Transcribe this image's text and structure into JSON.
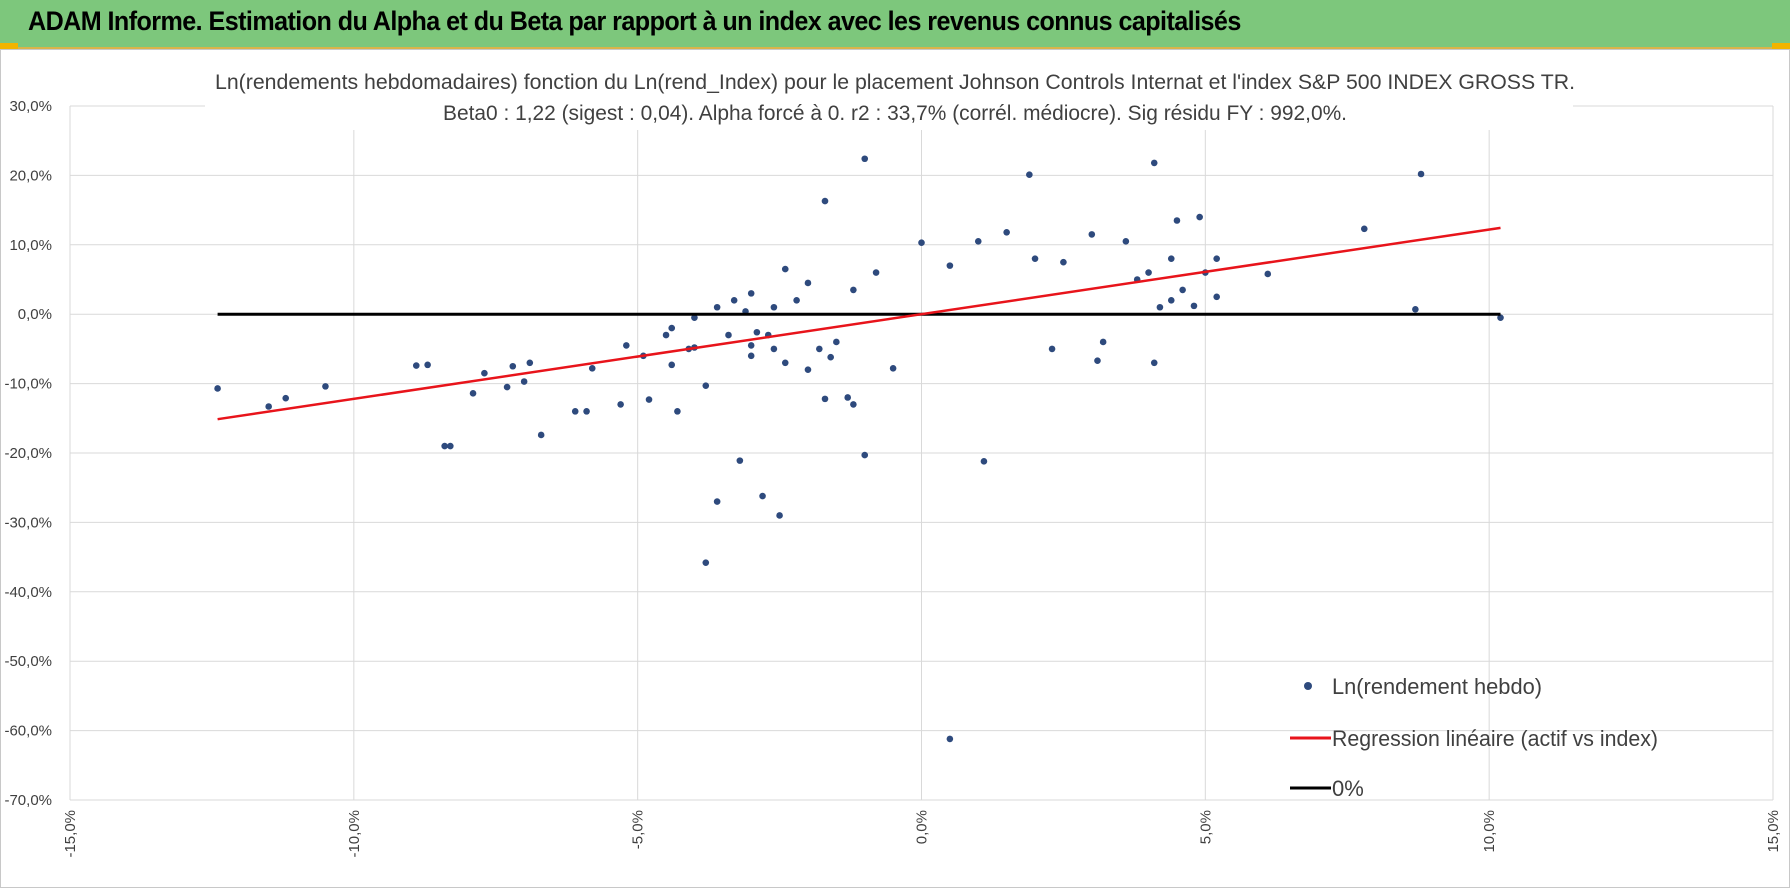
{
  "header": {
    "title": "ADAM Informe. Estimation du Alpha et du Beta par rapport à un index avec les revenus connus capitalisés"
  },
  "colors": {
    "header_bg": "#7dc77c",
    "points": "#2e4a7d",
    "regression": "#e8141b",
    "zero_line": "#000000",
    "accent": "#f2b400"
  },
  "chart_data": {
    "type": "scatter",
    "title": "Ln(rendements hebdomadaires) fonction du Ln(rend_Index) pour le placement Johnson Controls Internat et l'index S&P 500 INDEX GROSS TR.",
    "subtitle": "Beta0 : 1,22 (sigest : 0,04). Alpha forcé à 0. r2 : 33,7% (corrél. médiocre). Sig résidu FY : 992,0%.",
    "xlabel": "",
    "ylabel": "",
    "xlim": [
      -0.15,
      0.15
    ],
    "ylim": [
      -0.7,
      0.3
    ],
    "x_ticks": [
      "-15,0%",
      "-10,0%",
      "-5,0%",
      "0,0%",
      "5,0%",
      "10,0%",
      "15,0%"
    ],
    "y_ticks": [
      "30,0%",
      "20,0%",
      "10,0%",
      "0,0%",
      "-10,0%",
      "-20,0%",
      "-30,0%",
      "-40,0%",
      "-50,0%",
      "-60,0%",
      "-70,0%"
    ],
    "grid": true,
    "legend_position": "bottom-right",
    "series": [
      {
        "name": "Ln(rendement hebdo)",
        "kind": "scatter",
        "points": [
          [
            -0.124,
            -0.107
          ],
          [
            -0.115,
            -0.133
          ],
          [
            -0.112,
            -0.121
          ],
          [
            -0.105,
            -0.104
          ],
          [
            -0.089,
            -0.074
          ],
          [
            -0.087,
            -0.073
          ],
          [
            -0.084,
            -0.19
          ],
          [
            -0.083,
            -0.19
          ],
          [
            -0.079,
            -0.114
          ],
          [
            -0.077,
            -0.085
          ],
          [
            -0.073,
            -0.105
          ],
          [
            -0.072,
            -0.075
          ],
          [
            -0.07,
            -0.097
          ],
          [
            -0.069,
            -0.07
          ],
          [
            -0.067,
            -0.174
          ],
          [
            -0.061,
            -0.14
          ],
          [
            -0.059,
            -0.14
          ],
          [
            -0.058,
            -0.078
          ],
          [
            -0.053,
            -0.13
          ],
          [
            -0.052,
            -0.045
          ],
          [
            -0.049,
            -0.06
          ],
          [
            -0.048,
            -0.123
          ],
          [
            -0.045,
            -0.03
          ],
          [
            -0.044,
            -0.073
          ],
          [
            -0.043,
            -0.14
          ],
          [
            -0.04,
            -0.048
          ],
          [
            -0.038,
            -0.103
          ],
          [
            -0.036,
            -0.27
          ],
          [
            -0.038,
            -0.358
          ],
          [
            -0.032,
            -0.211
          ],
          [
            -0.03,
            -0.045
          ],
          [
            -0.029,
            -0.026
          ],
          [
            -0.028,
            -0.262
          ],
          [
            -0.025,
            -0.29
          ],
          [
            -0.024,
            -0.07
          ],
          [
            -0.024,
            0.065
          ],
          [
            -0.02,
            -0.08
          ],
          [
            -0.017,
            0.163
          ],
          [
            -0.017,
            -0.122
          ],
          [
            -0.016,
            -0.062
          ],
          [
            -0.013,
            -0.12
          ],
          [
            -0.012,
            -0.13
          ],
          [
            -0.01,
            0.224
          ],
          [
            -0.01,
            -0.203
          ],
          [
            -0.005,
            -0.078
          ],
          [
            0.005,
            -0.612
          ],
          [
            0.011,
            -0.212
          ],
          [
            0.019,
            0.201
          ],
          [
            0.041,
            0.218
          ],
          [
            0.041,
            -0.07
          ],
          [
            0.045,
            0.135
          ],
          [
            0.049,
            0.14
          ],
          [
            0.061,
            0.058
          ],
          [
            0.078,
            0.123
          ],
          [
            0.087,
            0.007
          ],
          [
            0.088,
            0.202
          ],
          [
            0.102,
            -0.005
          ],
          [
            0.052,
            0.025
          ],
          [
            0.048,
            0.012
          ],
          [
            0.044,
            0.02
          ],
          [
            0.036,
            0.105
          ],
          [
            0.03,
            0.115
          ],
          [
            0.015,
            0.118
          ],
          [
            0.01,
            0.105
          ],
          [
            0.0,
            0.103
          ],
          [
            0.031,
            -0.067
          ],
          [
            0.023,
            -0.05
          ],
          [
            0.032,
            -0.04
          ],
          [
            -0.036,
            0.01
          ],
          [
            -0.04,
            -0.005
          ],
          [
            -0.033,
            0.02
          ],
          [
            -0.03,
            0.03
          ],
          [
            -0.02,
            0.045
          ],
          [
            -0.015,
            -0.04
          ],
          [
            -0.008,
            0.06
          ],
          [
            0.005,
            0.07
          ],
          [
            0.02,
            0.08
          ],
          [
            0.025,
            0.075
          ],
          [
            -0.03,
            -0.06
          ],
          [
            -0.026,
            -0.05
          ],
          [
            -0.022,
            0.02
          ],
          [
            -0.018,
            -0.05
          ],
          [
            -0.012,
            0.035
          ],
          [
            0.04,
            0.06
          ],
          [
            0.044,
            0.08
          ],
          [
            0.05,
            0.06
          ],
          [
            0.052,
            0.08
          ],
          [
            0.046,
            0.035
          ],
          [
            0.042,
            0.01
          ],
          [
            0.038,
            0.05
          ],
          [
            -0.044,
            -0.02
          ],
          [
            -0.041,
            -0.05
          ],
          [
            -0.034,
            -0.03
          ],
          [
            -0.027,
            -0.03
          ],
          [
            -0.031,
            0.004
          ],
          [
            -0.026,
            0.01
          ]
        ]
      },
      {
        "name": "Regression linéaire (actif vs index)",
        "kind": "line",
        "beta": 1.22,
        "x_range": [
          -0.124,
          0.102
        ]
      },
      {
        "name": "0%",
        "kind": "line",
        "y": 0,
        "x_range": [
          -0.124,
          0.102
        ]
      }
    ]
  }
}
